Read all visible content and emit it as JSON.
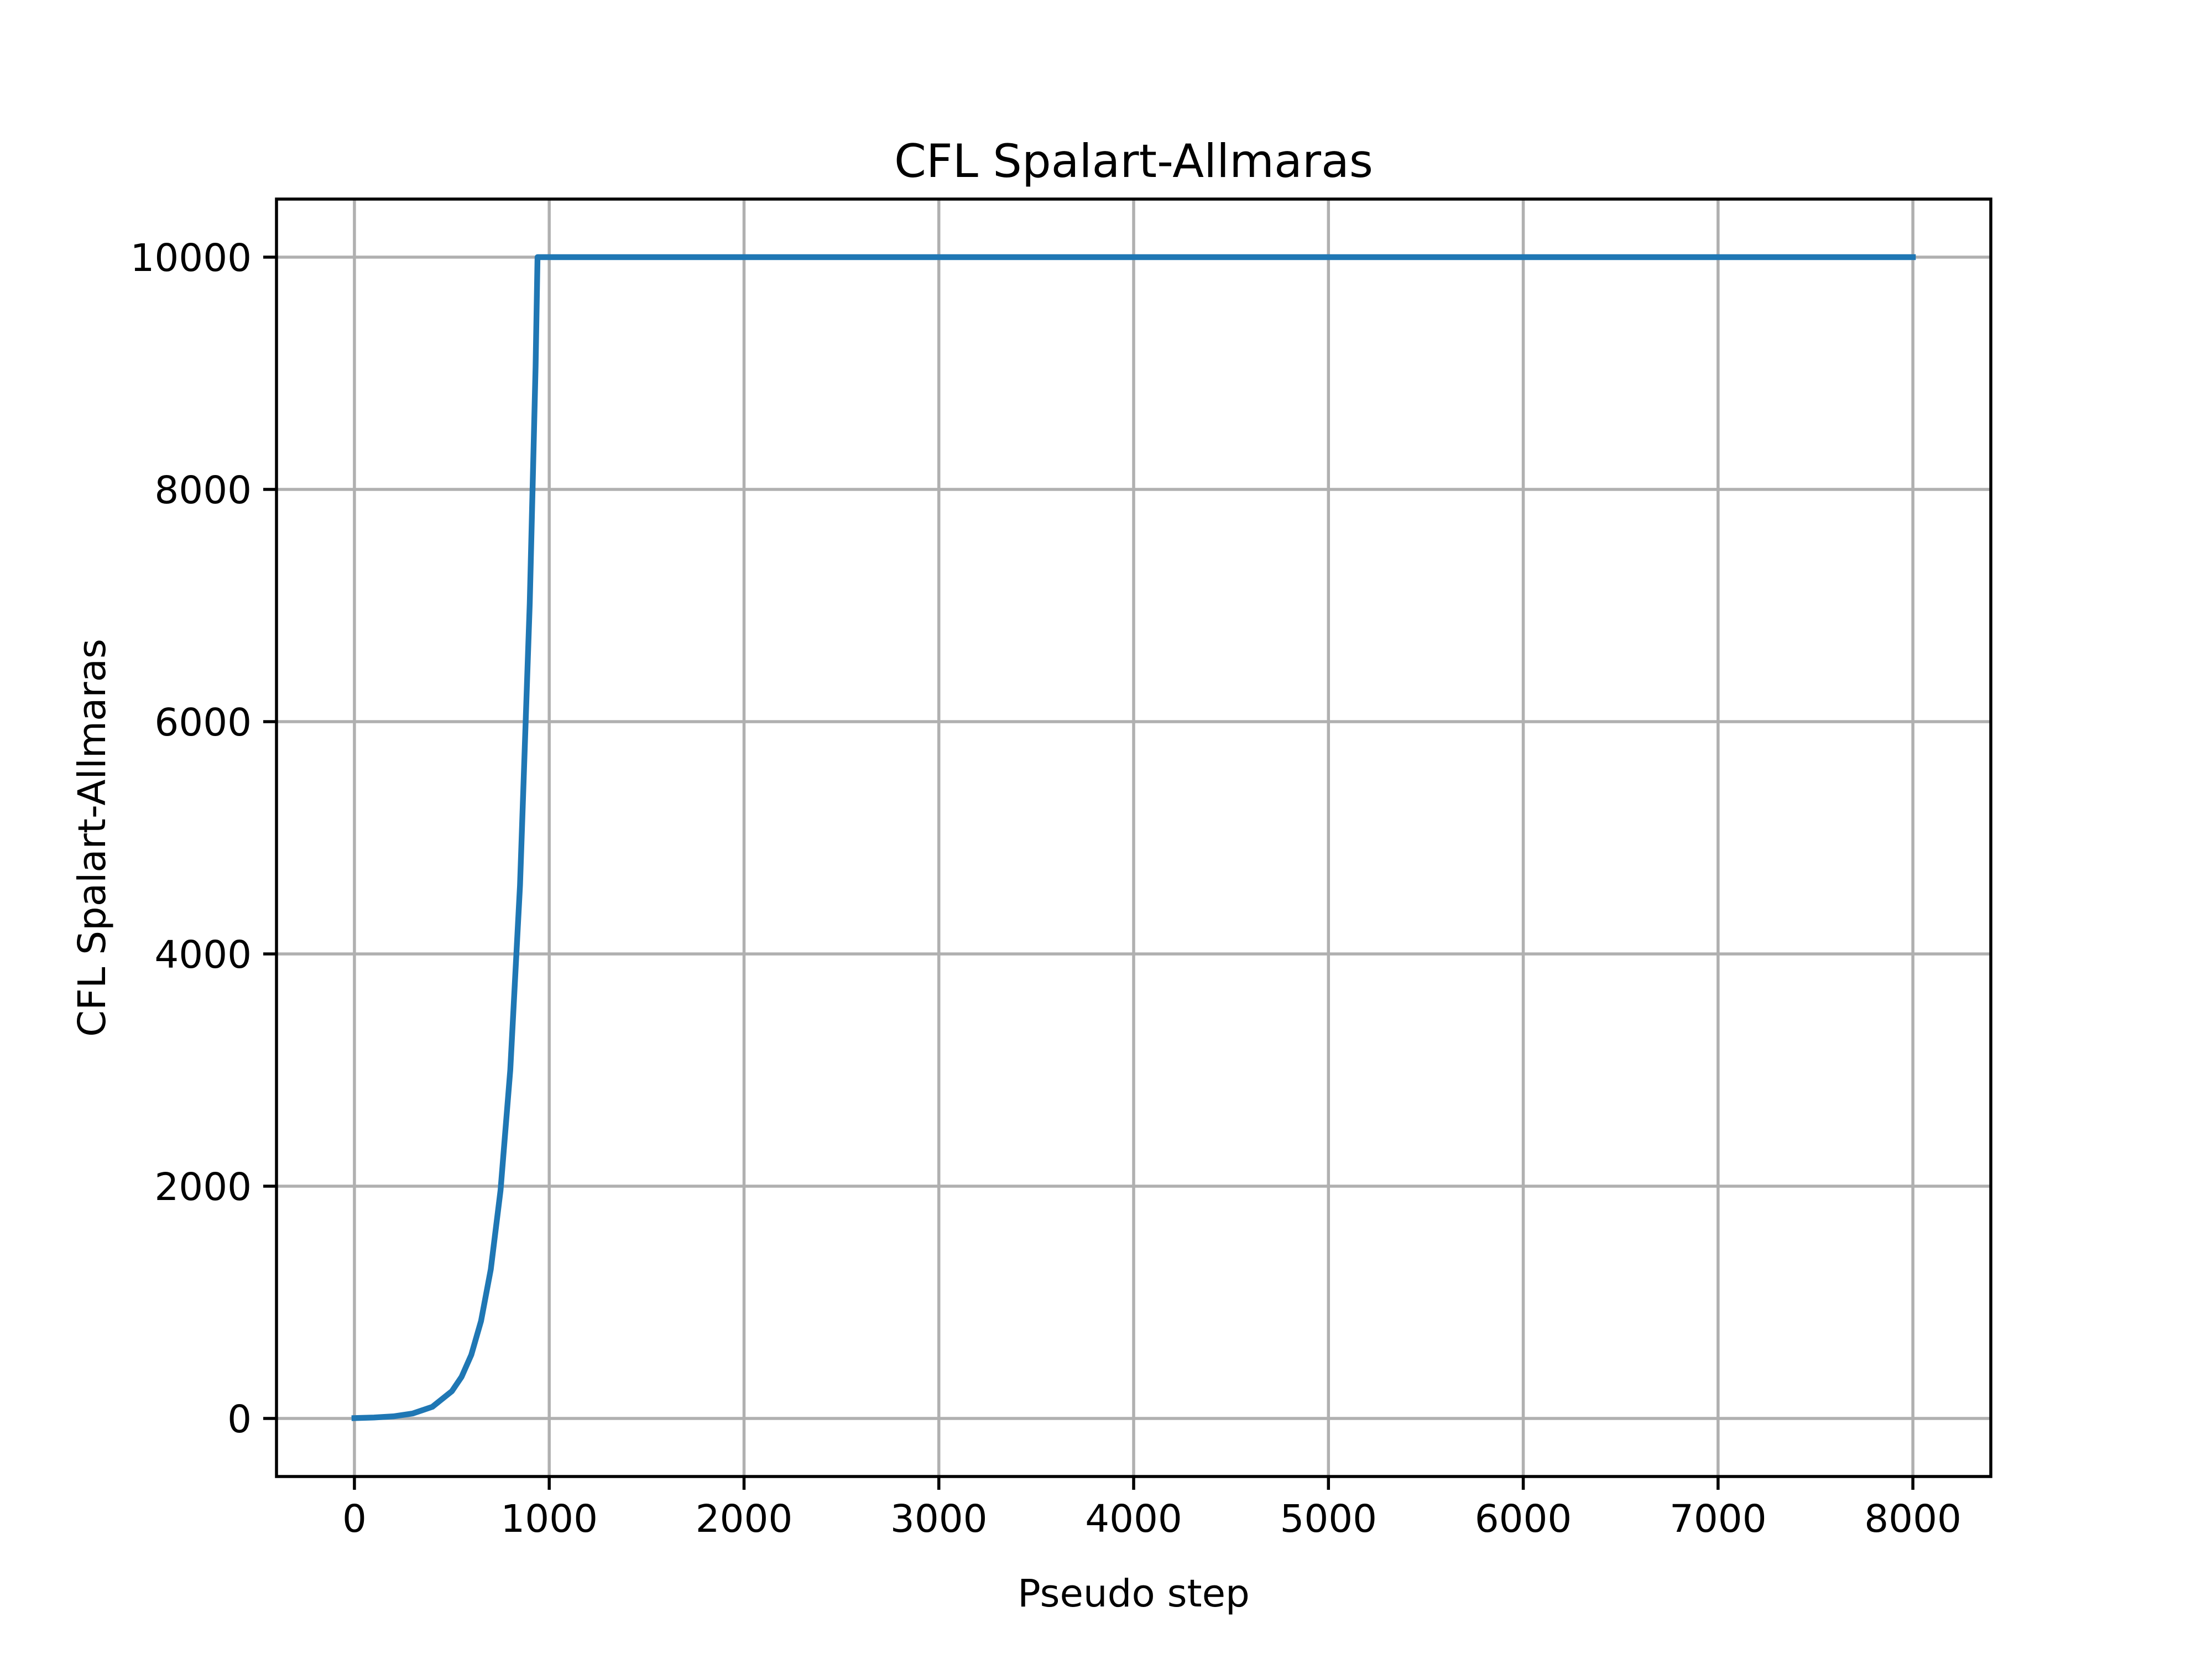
{
  "chart_data": {
    "type": "line",
    "title": "CFL Spalart-Allmaras",
    "xlabel": "Pseudo step",
    "ylabel": "CFL Spalart-Allmaras",
    "x": [
      0,
      100,
      200,
      300,
      400,
      500,
      550,
      600,
      650,
      700,
      750,
      800,
      850,
      900,
      930,
      940,
      8000
    ],
    "series": [
      {
        "name": "CFL Spalart-Allmaras",
        "color": "#1f77b4",
        "values": [
          3,
          8,
          18,
          43,
          100,
          234,
          358,
          548,
          839,
          1284,
          1963,
          3000,
          4590,
          7020,
          9060,
          10000,
          10000
        ]
      }
    ],
    "xlim": [
      -400,
      8400
    ],
    "xticks": [
      0,
      1000,
      2000,
      3000,
      4000,
      5000,
      6000,
      7000,
      8000
    ],
    "ylim": [
      -500,
      10500
    ],
    "yticks": [
      0,
      2000,
      4000,
      6000,
      8000,
      10000
    ],
    "grid": true
  }
}
